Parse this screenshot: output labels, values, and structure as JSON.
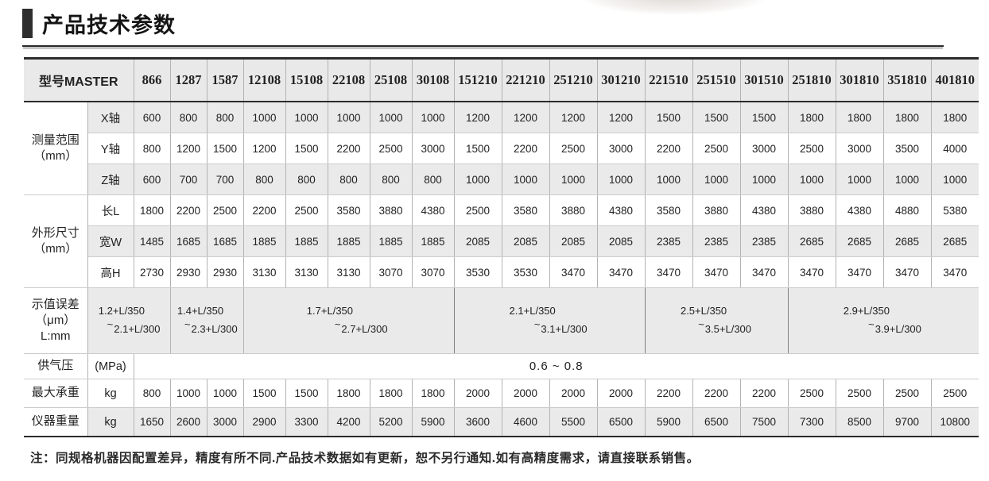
{
  "title": "产品技术参数",
  "note": "注：同规格机器因配置差异，精度有所不同.产品技术数据如有更新，恕不另行通知.如有高精度需求，请直接联系销售。",
  "colors": {
    "band": "#eaeaea",
    "header_bg": "#e9e9e9",
    "border_dark": "#2b2b2b",
    "border_group": "#8f8f8f"
  },
  "table": {
    "model_label": "型号MASTER",
    "models": [
      "866",
      "1287",
      "1587",
      "12108",
      "15108",
      "22108",
      "25108",
      "30108",
      "151210",
      "221210",
      "251210",
      "301210",
      "221510",
      "251510",
      "301510",
      "251810",
      "301810",
      "351810",
      "401810"
    ],
    "measuring_range": {
      "group_label": "测量范围",
      "group_unit": "（mm）",
      "rows": [
        {
          "label": "X轴",
          "band": true,
          "values": [
            "600",
            "800",
            "800",
            "1000",
            "1000",
            "1000",
            "1000",
            "1000",
            "1200",
            "1200",
            "1200",
            "1200",
            "1500",
            "1500",
            "1500",
            "1800",
            "1800",
            "1800",
            "1800"
          ]
        },
        {
          "label": "Y轴",
          "band": false,
          "values": [
            "800",
            "1200",
            "1500",
            "1200",
            "1500",
            "2200",
            "2500",
            "3000",
            "1500",
            "2200",
            "2500",
            "3000",
            "2200",
            "2500",
            "3000",
            "2500",
            "3000",
            "3500",
            "4000"
          ]
        },
        {
          "label": "Z轴",
          "band": true,
          "values": [
            "600",
            "700",
            "700",
            "800",
            "800",
            "800",
            "800",
            "800",
            "1000",
            "1000",
            "1000",
            "1000",
            "1000",
            "1000",
            "1000",
            "1000",
            "1000",
            "1000",
            "1000"
          ]
        }
      ]
    },
    "dimensions": {
      "group_label": "外形尺寸",
      "group_unit": "（mm）",
      "rows": [
        {
          "label": "长L",
          "band": false,
          "values": [
            "1800",
            "2200",
            "2500",
            "2200",
            "2500",
            "3580",
            "3880",
            "4380",
            "2500",
            "3580",
            "3880",
            "4380",
            "3580",
            "3880",
            "4380",
            "3880",
            "4380",
            "4880",
            "5380"
          ]
        },
        {
          "label": "宽W",
          "band": true,
          "values": [
            "1485",
            "1685",
            "1685",
            "1885",
            "1885",
            "1885",
            "1885",
            "1885",
            "2085",
            "2085",
            "2085",
            "2085",
            "2385",
            "2385",
            "2385",
            "2685",
            "2685",
            "2685",
            "2685"
          ]
        },
        {
          "label": "高H",
          "band": false,
          "values": [
            "2730",
            "2930",
            "2930",
            "3130",
            "3130",
            "3130",
            "3070",
            "3070",
            "3530",
            "3530",
            "3470",
            "3470",
            "3470",
            "3470",
            "3470",
            "3470",
            "3470",
            "3470",
            "3470"
          ]
        }
      ]
    },
    "indication_error": {
      "group_label": "示值误差",
      "group_unit": "（μm）",
      "group_sub": "L:mm",
      "tilde": "~",
      "cells": [
        {
          "span": 1,
          "with_unit_col": true,
          "from": "1.2+L/350",
          "to": "2.1+L/300"
        },
        {
          "span": 2,
          "with_unit_col": false,
          "from": "1.4+L/350",
          "to": "2.3+L/300"
        },
        {
          "span": 5,
          "with_unit_col": false,
          "from": "1.7+L/350",
          "to": "2.7+L/300"
        },
        {
          "span": 4,
          "with_unit_col": false,
          "from": "2.1+L/350",
          "to": "3.1+L/300"
        },
        {
          "span": 3,
          "with_unit_col": false,
          "from": "2.5+L/350",
          "to": "3.5+L/300"
        },
        {
          "span": 4,
          "with_unit_col": false,
          "from": "2.9+L/350",
          "to": "3.9+L/300"
        }
      ]
    },
    "air_pressure": {
      "label": "供气压",
      "unit": "(MPa)",
      "value": "0.6 ~ 0.8"
    },
    "max_load": {
      "label": "最大承重",
      "unit": "kg",
      "band": false,
      "values": [
        "800",
        "1000",
        "1000",
        "1500",
        "1500",
        "1800",
        "1800",
        "1800",
        "2000",
        "2000",
        "2000",
        "2000",
        "2200",
        "2200",
        "2200",
        "2500",
        "2500",
        "2500",
        "2500"
      ]
    },
    "weight": {
      "label": "仪器重量",
      "unit": "kg",
      "band": true,
      "values": [
        "1650",
        "2600",
        "3000",
        "2900",
        "3300",
        "4200",
        "5200",
        "5900",
        "3600",
        "4600",
        "5500",
        "6500",
        "5900",
        "6500",
        "7500",
        "7300",
        "8500",
        "9700",
        "10800"
      ]
    }
  }
}
